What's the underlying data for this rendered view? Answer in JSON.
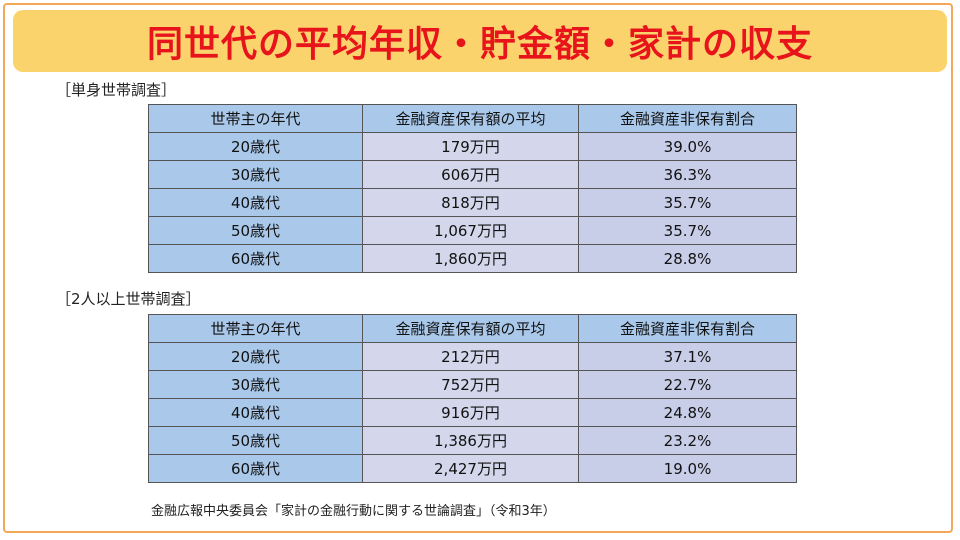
{
  "title": "同世代の平均年収・貯金額・家計の収支",
  "colors": {
    "title_text": "#e8141b",
    "title_bg": "#fbd36d",
    "header_bg": "#a9c8ea",
    "cell_bg": "#d4d7ec"
  },
  "tables": [
    {
      "label": "［単身世帯調査］",
      "headers": [
        "世帯主の年代",
        "金融資産保有額の平均",
        "金融資産非保有割合"
      ],
      "rows": [
        {
          "age": "20歳代",
          "amount": "179万円",
          "ratio": "39.0%"
        },
        {
          "age": "30歳代",
          "amount": "606万円",
          "ratio": "36.3%"
        },
        {
          "age": "40歳代",
          "amount": "818万円",
          "ratio": "35.7%"
        },
        {
          "age": "50歳代",
          "amount": "1,067万円",
          "ratio": "35.7%"
        },
        {
          "age": "60歳代",
          "amount": "1,860万円",
          "ratio": "28.8%"
        }
      ]
    },
    {
      "label": "［2人以上世帯調査］",
      "headers": [
        "世帯主の年代",
        "金融資産保有額の平均",
        "金融資産非保有割合"
      ],
      "rows": [
        {
          "age": "20歳代",
          "amount": "212万円",
          "ratio": "37.1%"
        },
        {
          "age": "30歳代",
          "amount": "752万円",
          "ratio": "22.7%"
        },
        {
          "age": "40歳代",
          "amount": "916万円",
          "ratio": "24.8%"
        },
        {
          "age": "50歳代",
          "amount": "1,386万円",
          "ratio": "23.2%"
        },
        {
          "age": "60歳代",
          "amount": "2,427万円",
          "ratio": "19.0%"
        }
      ]
    }
  ],
  "source": "金融広報中央委員会「家計の金融行動に関する世論調査」（令和3年）"
}
